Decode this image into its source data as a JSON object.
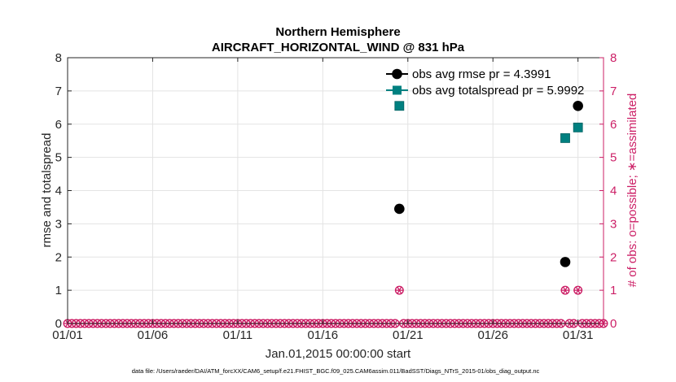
{
  "chart_data": {
    "type": "scatter",
    "title_line1": "Northern Hemisphere",
    "title_line2": "AIRCRAFT_HORIZONTAL_WIND @ 831 hPa",
    "xlabel": "Jan.01,2015 00:00:00 start",
    "ylabel_left": "rmse and totalspread",
    "ylabel_right": "# of obs: o=possible; ∗=assimilated",
    "footer": "data file: /Users/raeder/DAI/ATM_forcXX/CAM6_setup/f.e21.FHIST_BGC.f09_025.CAM6assim.011/BadSST/Diags_NTrS_2015-01/obs_diag_output.nc",
    "xlim": [
      0,
      31.5
    ],
    "ylim_left": [
      0,
      8
    ],
    "ylim_right": [
      0,
      8
    ],
    "x_ticks": [
      {
        "value": 0,
        "label": "01/01"
      },
      {
        "value": 5,
        "label": "01/06"
      },
      {
        "value": 10,
        "label": "01/11"
      },
      {
        "value": 15,
        "label": "01/16"
      },
      {
        "value": 20,
        "label": "01/21"
      },
      {
        "value": 25,
        "label": "01/26"
      },
      {
        "value": 30,
        "label": "01/31"
      }
    ],
    "y_ticks_left": [
      0,
      1,
      2,
      3,
      4,
      5,
      6,
      7,
      8
    ],
    "y_ticks_right": [
      0,
      1,
      2,
      3,
      4,
      5,
      6,
      7,
      8
    ],
    "grid": true,
    "legend_position": "top-right",
    "series": [
      {
        "name": "obs avg rmse pr = 4.3991",
        "color": "#000000",
        "marker": "circle",
        "axis": "left",
        "points": [
          [
            19.5,
            3.45
          ],
          [
            29.25,
            1.85
          ],
          [
            30.0,
            6.55
          ]
        ]
      },
      {
        "name": "obs avg totalspread pr = 5.9992",
        "color": "#008080",
        "marker": "square",
        "axis": "left",
        "points": [
          [
            19.5,
            6.55
          ],
          [
            29.25,
            5.58
          ],
          [
            30.0,
            5.9
          ]
        ]
      },
      {
        "color": "#cc1f66",
        "marker": "circle-star",
        "axis": "right",
        "x_start": 0,
        "x_step": 0.25,
        "count_default": 0,
        "nonzero": [
          [
            19.5,
            1
          ],
          [
            29.25,
            1
          ],
          [
            30.0,
            1
          ]
        ]
      }
    ],
    "colors": {
      "axis": "#262626",
      "grid": "#e3e3e3",
      "right_axis": "#cc1f66",
      "rmse": "#000000",
      "spread": "#008080",
      "obs": "#cc1f66"
    }
  }
}
